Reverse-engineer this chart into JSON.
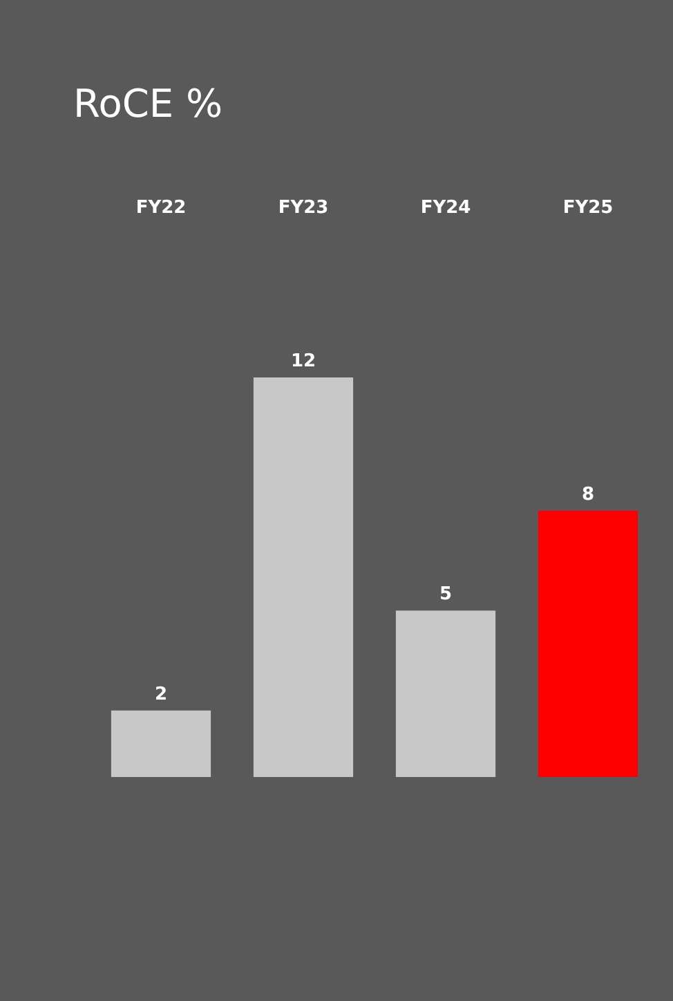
{
  "chart_data": {
    "type": "bar",
    "title": "RoCE %",
    "categories": [
      "FY22",
      "FY23",
      "FY24",
      "FY25"
    ],
    "values": [
      2,
      12,
      5,
      8
    ],
    "colors": [
      "#c8c8c8",
      "#c8c8c8",
      "#c8c8c8",
      "#ff0000"
    ],
    "data_labels": true
  }
}
